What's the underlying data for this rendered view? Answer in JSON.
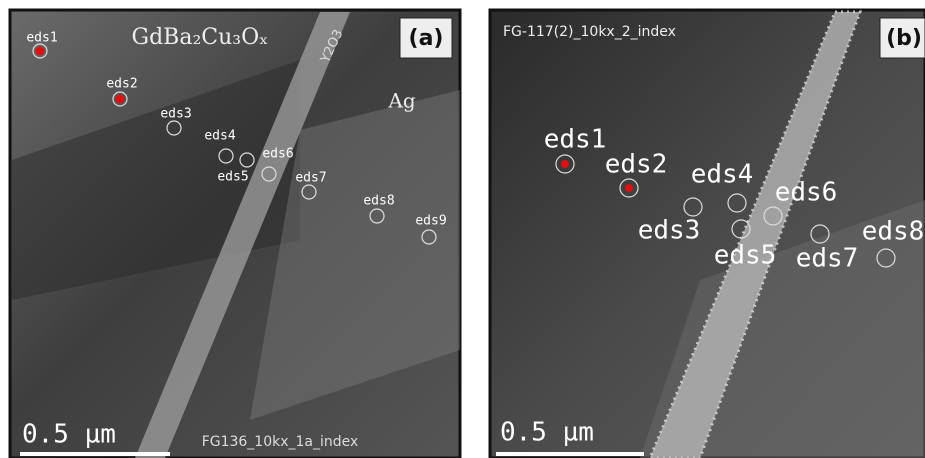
{
  "panels": [
    {
      "label": "(a)",
      "phase": "GdBa₂Cu₃Oₓ",
      "annotations": [
        "Y2O3",
        "Ag"
      ],
      "filename": "FG136_10kx_1a_index",
      "scale_bar": "0.5 µm",
      "points": [
        "eds1",
        "eds2",
        "eds3",
        "eds4",
        "eds6",
        "eds5",
        "eds7",
        "eds8",
        "eds9"
      ]
    },
    {
      "label": "(b)",
      "filename": "FG-117(2)_10kx_2_index",
      "scale_bar": "0.5 µm",
      "points": [
        "eds1",
        "eds2",
        "eds4",
        "eds6",
        "eds3",
        "eds5",
        "eds7",
        "eds8"
      ]
    }
  ]
}
